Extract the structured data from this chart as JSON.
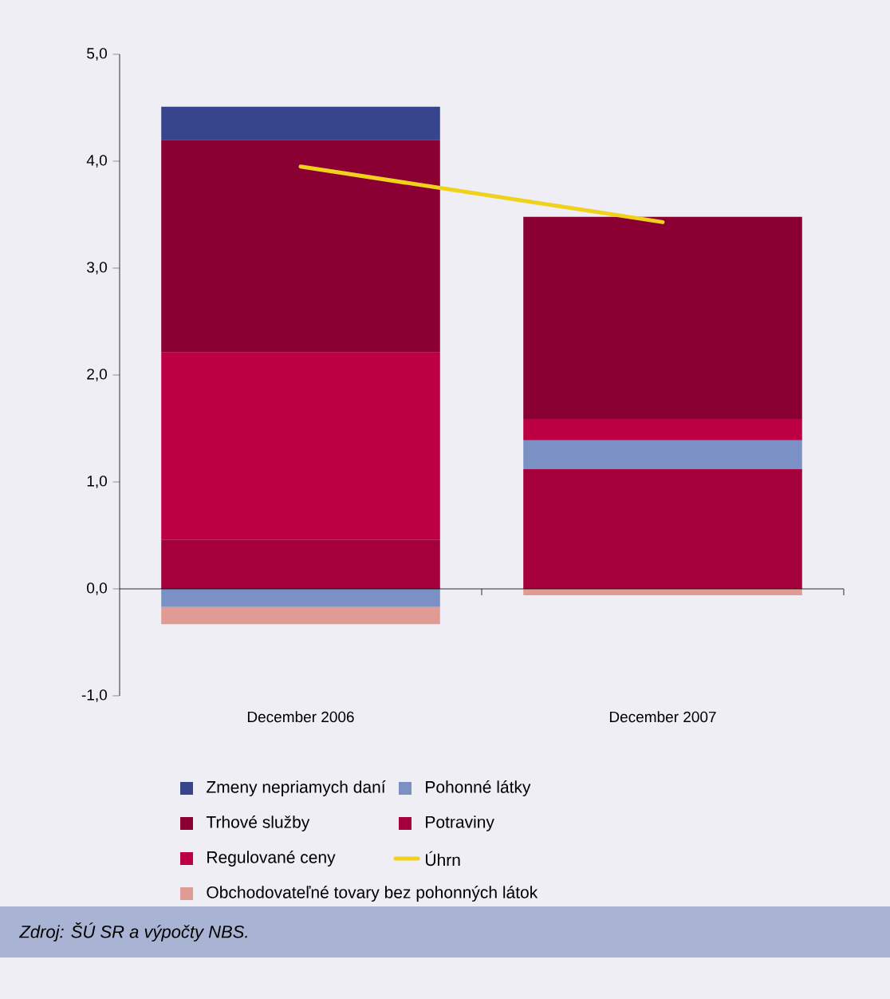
{
  "chart_data": {
    "type": "bar",
    "stacked": true,
    "categories": [
      "December 2006",
      "December 2007"
    ],
    "series": [
      {
        "name": "Potraviny",
        "color": "#a5003c",
        "values": [
          0.46,
          1.12
        ]
      },
      {
        "name": "Pohonné látky",
        "color": "#7b90c4",
        "values": [
          -0.17,
          0.27
        ]
      },
      {
        "name": "Regulované ceny",
        "color": "#bd0044",
        "values": [
          1.75,
          0.2
        ]
      },
      {
        "name": "Trhové služby",
        "color": "#8a0033",
        "values": [
          1.99,
          1.89
        ]
      },
      {
        "name": "Zmeny nepriamych daní",
        "color": "#37458c",
        "values": [
          0.31,
          0
        ]
      },
      {
        "name": "Obchodovateľné tovary bez pohonných látok",
        "color": "#e09c94",
        "values": [
          -0.16,
          -0.06
        ]
      },
      {
        "name": "Úhrn",
        "type": "line",
        "color": "#f0d21c",
        "values": [
          3.95,
          3.43
        ]
      }
    ],
    "ylim": [
      -1,
      5
    ],
    "yticks": [
      {
        "value": -1,
        "label": "-1,0"
      },
      {
        "value": 0,
        "label": "0,0"
      },
      {
        "value": 1,
        "label": "1,0"
      },
      {
        "value": 2,
        "label": "2,0"
      },
      {
        "value": 3,
        "label": "3,0"
      },
      {
        "value": 4,
        "label": "4,0"
      },
      {
        "value": 5,
        "label": "5,0"
      }
    ],
    "legend": "bottom",
    "annotations": [
      "Zdroj: *ŠÚ SR a výpočty NBS.*"
    ]
  }
}
